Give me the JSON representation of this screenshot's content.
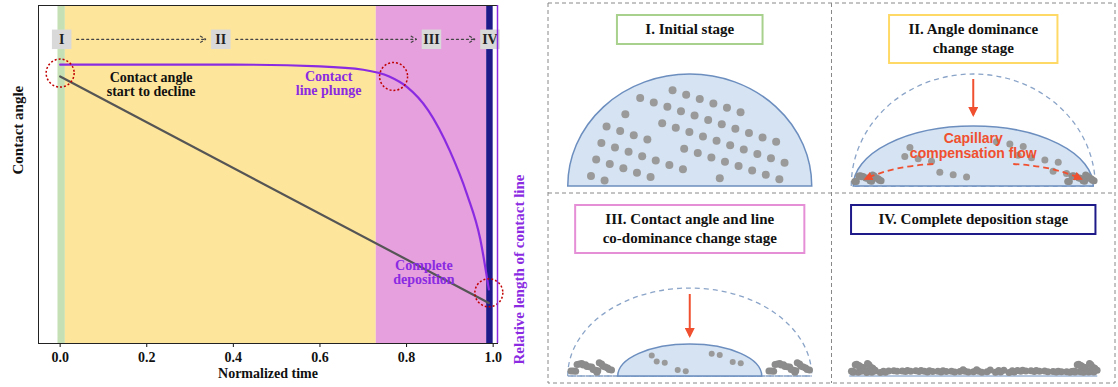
{
  "chart_data": {
    "type": "line",
    "x_label": "Normalized time",
    "xlim": [
      -0.05,
      1.01
    ],
    "xticks": [
      {
        "value": 0,
        "label": "0.0"
      },
      {
        "value": 0.2,
        "label": "0.2"
      },
      {
        "value": 0.4,
        "label": "0.4"
      },
      {
        "value": 0.6,
        "label": "0.6"
      },
      {
        "value": 0.8,
        "label": "0.8"
      },
      {
        "value": 1,
        "label": "1.0"
      }
    ],
    "ylim": [
      0,
      1
    ],
    "yticks": [],
    "y2lim": [
      0,
      1
    ],
    "y2ticks": [],
    "tick_labels": "x",
    "grid": false,
    "series": [
      {
        "name": "Contact angle",
        "color": "#555555",
        "x": [
          0,
          0.99
        ],
        "values": [
          0.79,
          0.12
        ]
      },
      {
        "name": "Relative length of contact line",
        "color": "#8a2be2",
        "axis": "y2",
        "x": [
          0,
          0.2,
          0.4,
          0.6,
          0.7,
          0.76,
          0.8,
          0.85,
          0.9,
          0.94,
          0.97,
          0.99
        ],
        "values": [
          0.825,
          0.825,
          0.825,
          0.82,
          0.81,
          0.79,
          0.76,
          0.69,
          0.57,
          0.44,
          0.31,
          0.16
        ]
      }
    ],
    "stages": [
      {
        "label": "I",
        "start": -0.005,
        "end": 0.012,
        "color": "#c5e0b4"
      },
      {
        "label": "II",
        "start": 0.012,
        "end": 0.73,
        "color": "#fde59b"
      },
      {
        "label": "III",
        "start": 0.73,
        "end": 0.985,
        "color": "#e5a0dd"
      },
      {
        "label": "IV",
        "start": 0.985,
        "end": 1.0,
        "color": "#1f1a8a"
      }
    ],
    "annotations": [
      {
        "text": "Contact angle\nstart to decline",
        "x": 0.21,
        "y": 0.765,
        "color": "#111111"
      },
      {
        "text": "Contact\nline plunge",
        "x": 0.62,
        "y": 0.77,
        "color": "#8a2be2"
      },
      {
        "text": "Complete\ndeposition",
        "x": 0.84,
        "y": 0.21,
        "color": "#8a2be2"
      }
    ],
    "highlights": [
      {
        "x": 0.0,
        "y": 0.8
      },
      {
        "x": 0.77,
        "y": 0.79
      },
      {
        "x": 0.99,
        "y": 0.15
      }
    ]
  },
  "diagram": {
    "panels": [
      {
        "title": [
          "I. Initial stage"
        ],
        "color": "#a9d18e"
      },
      {
        "title": [
          "II. Angle dominance",
          "change stage"
        ],
        "color": "#ffd966",
        "annotation": [
          "Capillary",
          "compensation flow"
        ]
      },
      {
        "title": [
          "III. Contact angle and line",
          "co-dominance change stage"
        ],
        "color": "#e48fd6"
      },
      {
        "title": [
          "IV. Complete deposition stage"
        ],
        "color": "#1f1a8a"
      }
    ]
  }
}
